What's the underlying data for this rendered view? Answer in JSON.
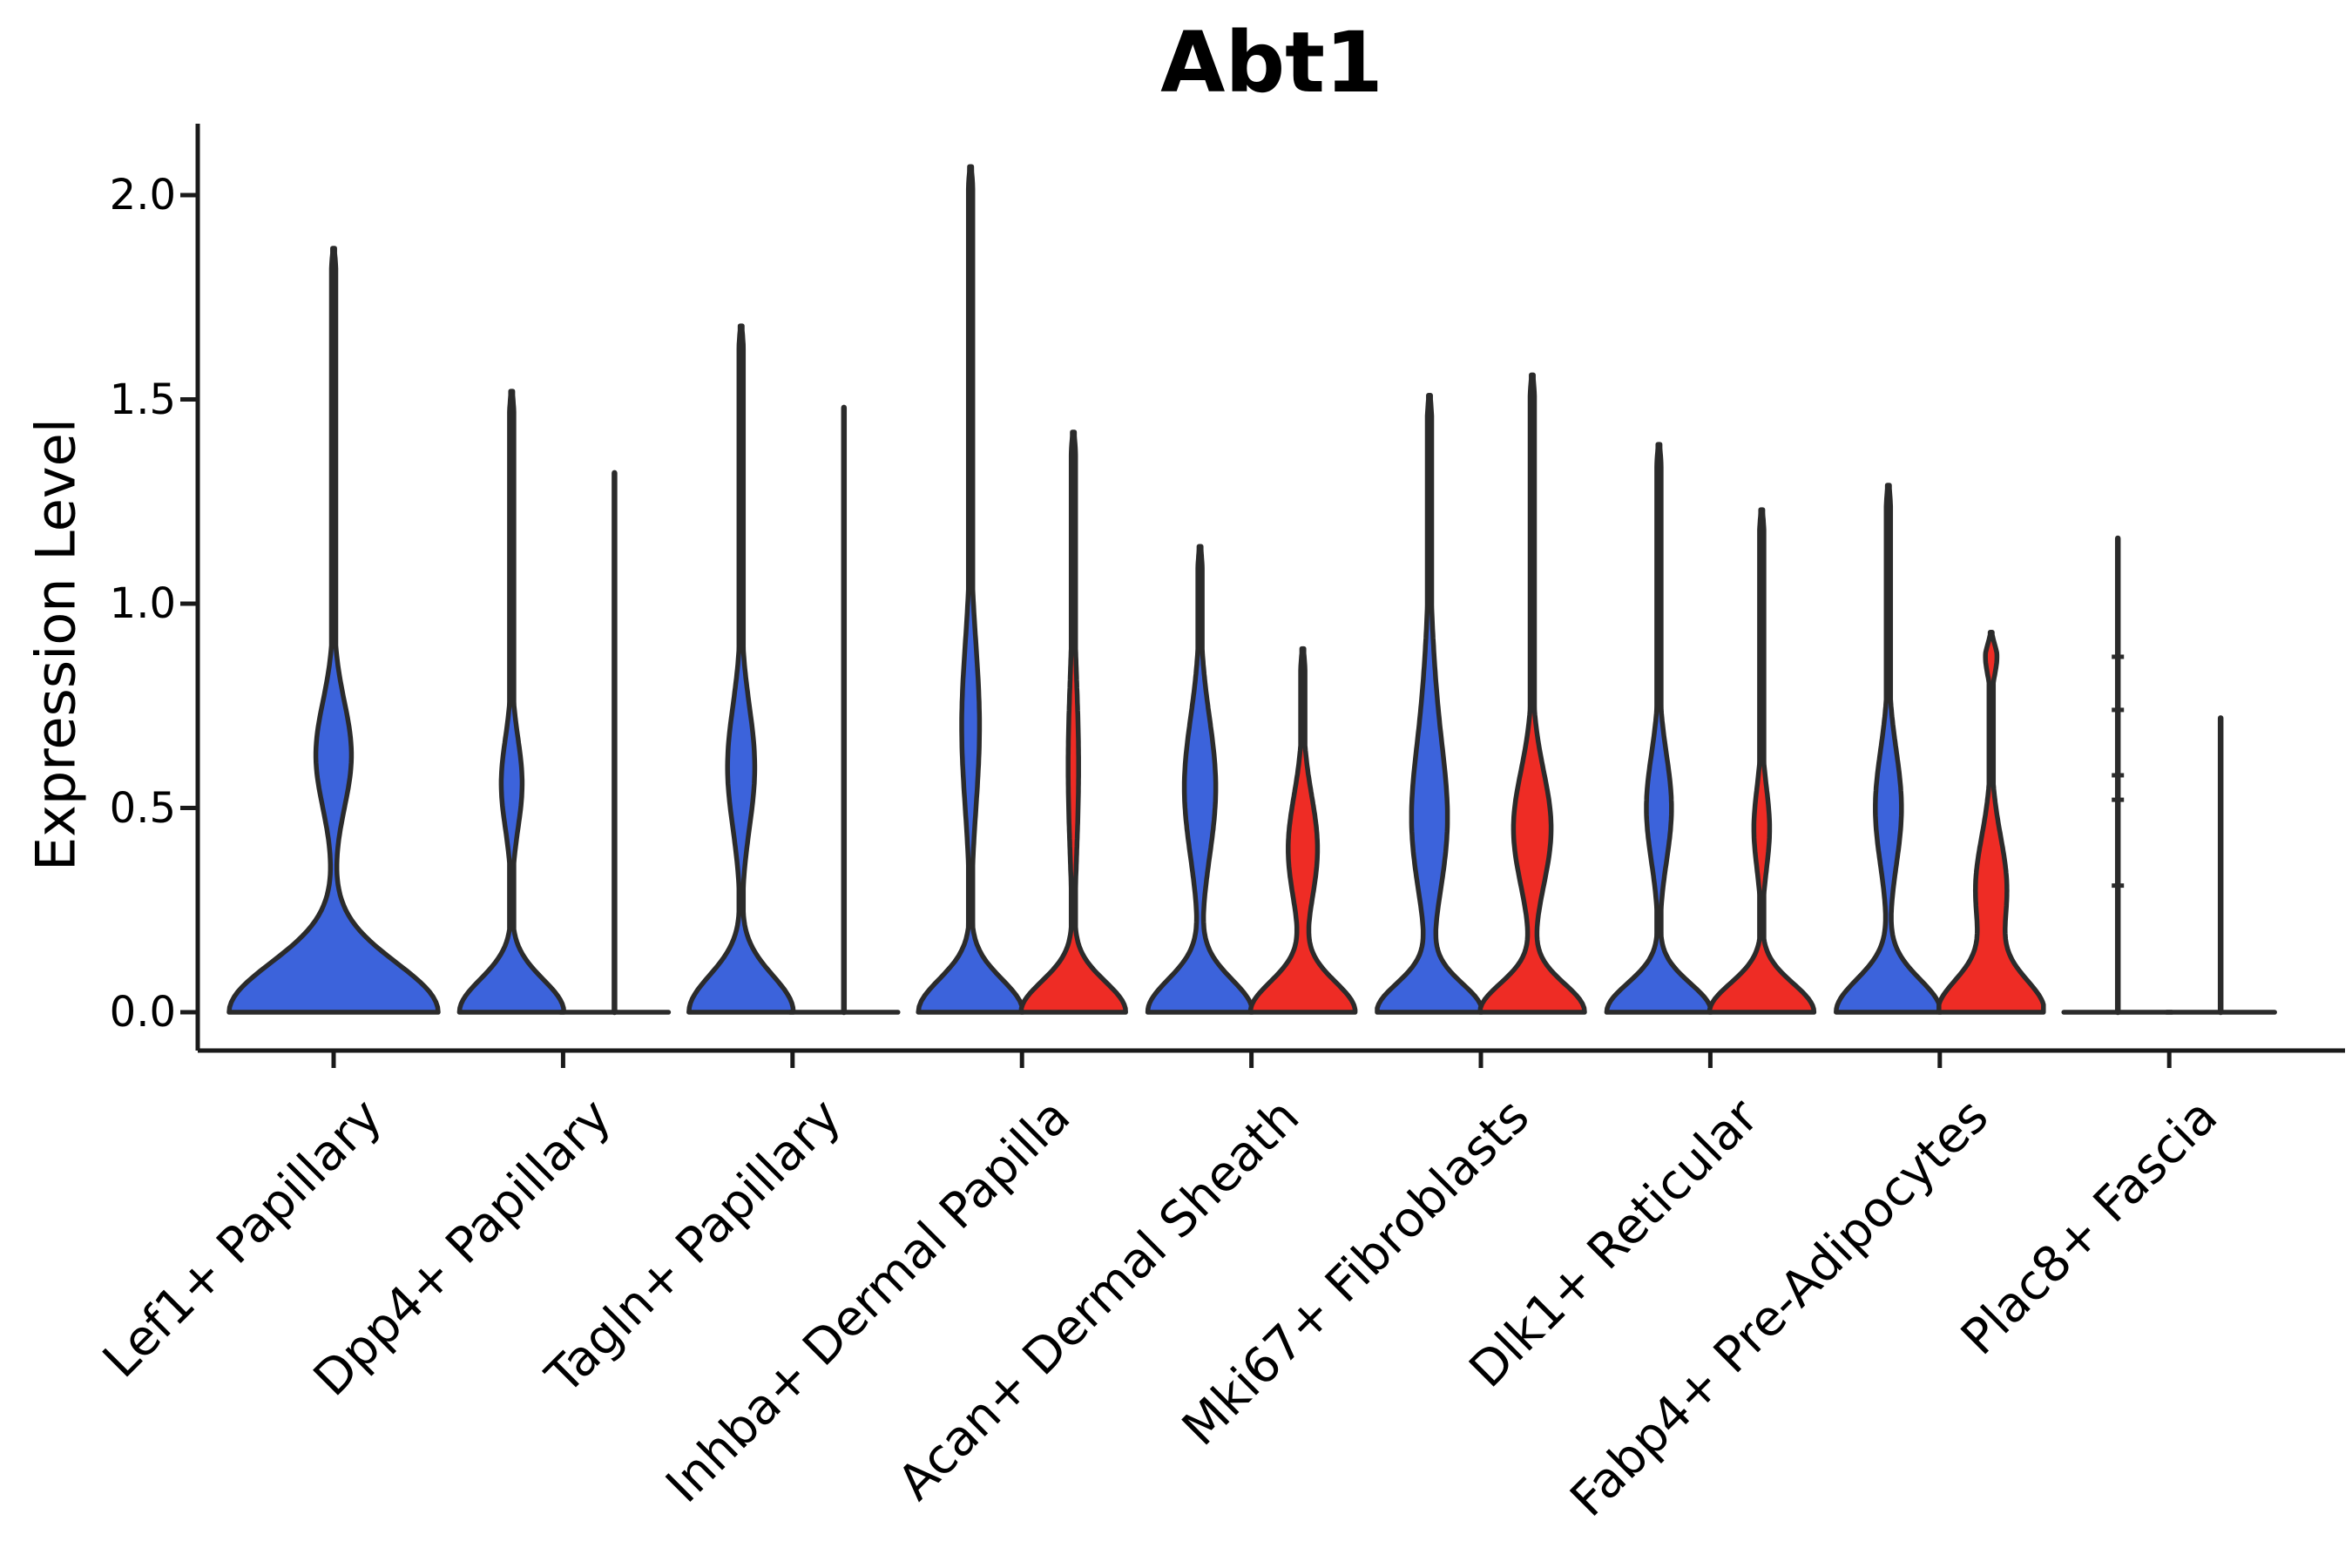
{
  "chart_data": {
    "type": "violin",
    "title": "Abt1",
    "ylabel": "Expression Level",
    "yticks": [
      "0.0",
      "0.5",
      "1.0",
      "1.5",
      "2.0"
    ],
    "ytick_values": [
      0.0,
      0.5,
      1.0,
      1.5,
      2.0
    ],
    "ylim": [
      0.0,
      2.07
    ],
    "grid": "off",
    "legend": "none",
    "categories": [
      "Lef1+ Papillary",
      "Dpp4+ Papillary",
      "Tagln+ Papillary",
      "Inhba+ Dermal Papilla",
      "Acan+ Dermal Sheath",
      "Mki67+ Fibroblasts",
      "Dlk1+ Reticular",
      "Fabp4+ Pre-Adipocytes",
      "Plac8+ Fascia"
    ],
    "series_colors": {
      "blue": "#3C63DB",
      "red": "#EE2C25"
    },
    "outline_color": "#2B2B2B",
    "violins": [
      {
        "category": "Lef1+ Papillary",
        "blue": {
          "max": 1.87,
          "mode": 0.63,
          "degenerate": false,
          "half_width": 120,
          "base_sigma": 0.12,
          "bulges": [
            {
              "amp": 0.17,
              "center": 0.63,
              "sigma": 0.13
            }
          ]
        },
        "red": null
      },
      {
        "category": "Dpp4+ Papillary",
        "blue": {
          "max": 1.52,
          "mode": 0.56,
          "degenerate": false,
          "half_width": 60,
          "base_sigma": 0.08,
          "bulges": [
            {
              "amp": 0.2,
              "center": 0.56,
              "sigma": 0.11
            }
          ]
        },
        "red": {
          "max": 1.32,
          "degenerate": true
        }
      },
      {
        "category": "Tagln+ Papillary",
        "blue": {
          "max": 1.68,
          "mode": 0.6,
          "degenerate": false,
          "half_width": 60,
          "base_sigma": 0.09,
          "bulges": [
            {
              "amp": 0.26,
              "center": 0.6,
              "sigma": 0.15
            }
          ]
        },
        "red": {
          "max": 1.48,
          "degenerate": true
        }
      },
      {
        "category": "Inhba+ Dermal Papilla",
        "blue": {
          "max": 2.07,
          "mode": 0.7,
          "degenerate": false,
          "half_width": 60,
          "base_sigma": 0.08,
          "bulges": [
            {
              "amp": 0.17,
              "center": 0.7,
              "sigma": 0.2
            }
          ]
        },
        "red": {
          "max": 1.42,
          "mode": 0.6,
          "degenerate": false,
          "half_width": 60,
          "base_sigma": 0.075,
          "bulges": [
            {
              "amp": 0.1,
              "center": 0.6,
              "sigma": 0.22
            }
          ]
        }
      },
      {
        "category": "Acan+ Dermal Sheath",
        "blue": {
          "max": 1.14,
          "mode": 0.55,
          "degenerate": false,
          "half_width": 60,
          "base_sigma": 0.08,
          "bulges": [
            {
              "amp": 0.3,
              "center": 0.55,
              "sigma": 0.17
            }
          ]
        },
        "red": {
          "max": 0.89,
          "mode": 0.4,
          "degenerate": false,
          "half_width": 60,
          "base_sigma": 0.075,
          "bulges": [
            {
              "amp": 0.28,
              "center": 0.4,
              "sigma": 0.13
            }
          ]
        }
      },
      {
        "category": "Mki67+ Fibroblasts",
        "blue": {
          "max": 1.51,
          "mode": 0.45,
          "degenerate": false,
          "half_width": 60,
          "base_sigma": 0.07,
          "bulges": [
            {
              "amp": 0.3,
              "center": 0.45,
              "sigma": 0.17
            },
            {
              "amp": 0.1,
              "center": 0.72,
              "sigma": 0.2
            }
          ]
        },
        "red": {
          "max": 1.56,
          "mode": 0.45,
          "degenerate": false,
          "half_width": 60,
          "base_sigma": 0.07,
          "bulges": [
            {
              "amp": 0.36,
              "center": 0.45,
              "sigma": 0.14
            }
          ]
        }
      },
      {
        "category": "Dlk1+ Reticular",
        "blue": {
          "max": 1.39,
          "mode": 0.5,
          "degenerate": false,
          "half_width": 60,
          "base_sigma": 0.07,
          "bulges": [
            {
              "amp": 0.24,
              "center": 0.5,
              "sigma": 0.13
            }
          ]
        },
        "red": {
          "max": 1.23,
          "mode": 0.45,
          "degenerate": false,
          "half_width": 60,
          "base_sigma": 0.07,
          "bulges": [
            {
              "amp": 0.15,
              "center": 0.45,
              "sigma": 0.1
            }
          ]
        }
      },
      {
        "category": "Fabp4+ Pre-Adipocytes",
        "blue": {
          "max": 1.29,
          "mode": 0.5,
          "degenerate": false,
          "half_width": 60,
          "base_sigma": 0.08,
          "bulges": [
            {
              "amp": 0.25,
              "center": 0.5,
              "sigma": 0.14
            }
          ]
        },
        "red": {
          "max": 0.93,
          "mode": 0.3,
          "degenerate": false,
          "half_width": 60,
          "base_sigma": 0.08,
          "bulges": [
            {
              "amp": 0.3,
              "center": 0.3,
              "sigma": 0.13
            },
            {
              "amp": 0.11,
              "center": 0.87,
              "sigma": 0.045
            }
          ]
        }
      },
      {
        "category": "Plac8+ Fascia",
        "blue": {
          "max": 1.16,
          "degenerate": true,
          "point_marks": [
            0.87,
            0.74,
            0.58,
            0.52,
            0.31
          ]
        },
        "red": {
          "max": 0.72,
          "degenerate": true
        }
      }
    ]
  }
}
